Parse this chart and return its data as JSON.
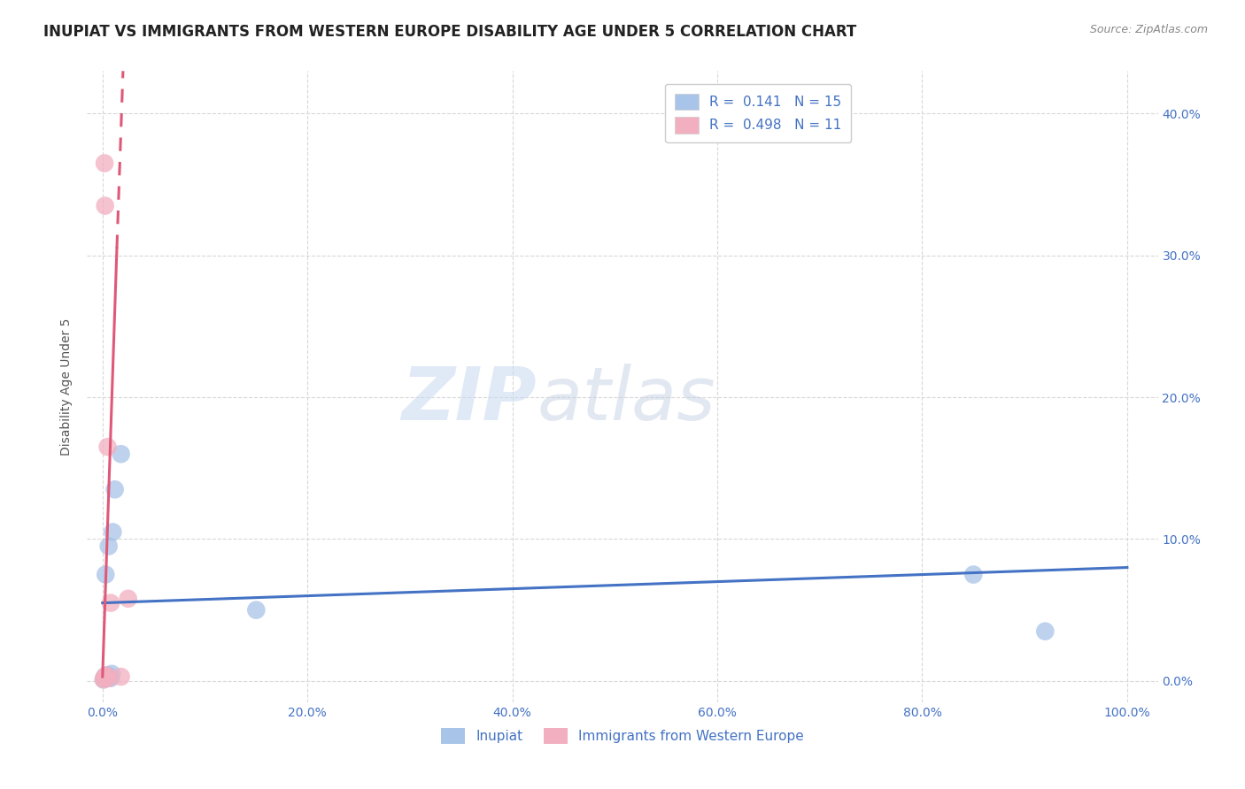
{
  "title": "INUPIAT VS IMMIGRANTS FROM WESTERN EUROPE DISABILITY AGE UNDER 5 CORRELATION CHART",
  "source": "Source: ZipAtlas.com",
  "xlabel_vals": [
    0,
    20,
    40,
    60,
    80,
    100
  ],
  "ylabel": "Disability Age Under 5",
  "ylabel_vals": [
    0,
    10,
    20,
    30,
    40
  ],
  "xlim": [
    -1.5,
    103
  ],
  "ylim": [
    -1.5,
    43
  ],
  "blue_label": "Inupiat",
  "pink_label": "Immigrants from Western Europe",
  "blue_R": "0.141",
  "blue_N": "15",
  "pink_R": "0.498",
  "pink_N": "11",
  "blue_color": "#a8c4e8",
  "pink_color": "#f2afc0",
  "blue_line_color": "#4472c4",
  "pink_line_color": "#e05878",
  "watermark_zip": "ZIP",
  "watermark_atlas": "atlas",
  "blue_scatter_x": [
    0.1,
    0.2,
    0.3,
    0.4,
    0.5,
    0.6,
    0.7,
    0.8,
    0.9,
    1.0,
    1.2,
    1.8,
    15.0,
    85.0,
    92.0
  ],
  "blue_scatter_y": [
    0.1,
    0.3,
    7.5,
    0.2,
    0.4,
    9.5,
    0.3,
    0.2,
    0.5,
    10.5,
    13.5,
    16.0,
    5.0,
    7.5,
    3.5
  ],
  "pink_scatter_x": [
    0.1,
    0.15,
    0.2,
    0.25,
    0.3,
    0.35,
    0.5,
    0.6,
    0.8,
    1.8,
    2.5
  ],
  "pink_scatter_y": [
    0.1,
    0.2,
    36.5,
    33.5,
    0.3,
    0.4,
    16.5,
    0.2,
    5.5,
    0.3,
    5.8
  ],
  "blue_trend_x0": 0,
  "blue_trend_x1": 100,
  "blue_trend_y0": 5.5,
  "blue_trend_y1": 8.0,
  "pink_solid_x0": 0,
  "pink_solid_x1": 1.4,
  "pink_solid_y0": 0.3,
  "pink_solid_y1": 30.5,
  "pink_dashed_x0": 1.4,
  "pink_dashed_x1": 2.0,
  "pink_dashed_y0": 30.5,
  "pink_dashed_y1": 43.0,
  "grid_color": "#d8d8d8",
  "background_color": "#ffffff",
  "title_fontsize": 12,
  "axis_label_fontsize": 10,
  "tick_fontsize": 10,
  "legend_fontsize": 11
}
